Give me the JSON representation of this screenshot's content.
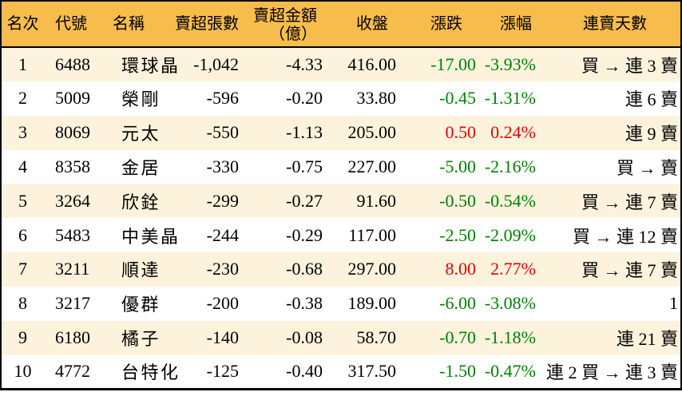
{
  "colors": {
    "header_bg": "#F7BD4C",
    "stripe_bg": "#FDF3DC",
    "negative": "#008000",
    "positive": "#E90000",
    "border": "#000000"
  },
  "columns": {
    "rank": "名次",
    "code": "代號",
    "name": "名稱",
    "sell_volume": "賣超張數",
    "sell_amount_line1": "賣超金額",
    "sell_amount_line2": "（億）",
    "close": "收盤",
    "change": "漲跌",
    "change_pct": "漲幅",
    "streak": "連賣天數"
  },
  "rows": [
    {
      "rank": "1",
      "code": "6488",
      "name": "環球晶",
      "sell_volume": "-1,042",
      "sell_amount": "-4.33",
      "close": "416.00",
      "change": "-17.00",
      "change_pct": "-3.93%",
      "streak": "買 → 連 3 賣"
    },
    {
      "rank": "2",
      "code": "5009",
      "name": "榮剛",
      "sell_volume": "-596",
      "sell_amount": "-0.20",
      "close": "33.80",
      "change": "-0.45",
      "change_pct": "-1.31%",
      "streak": "連 6 賣"
    },
    {
      "rank": "3",
      "code": "8069",
      "name": "元太",
      "sell_volume": "-550",
      "sell_amount": "-1.13",
      "close": "205.00",
      "change": "0.50",
      "change_pct": "0.24%",
      "streak": "連 9 賣"
    },
    {
      "rank": "4",
      "code": "8358",
      "name": "金居",
      "sell_volume": "-330",
      "sell_amount": "-0.75",
      "close": "227.00",
      "change": "-5.00",
      "change_pct": "-2.16%",
      "streak": "買 → 賣"
    },
    {
      "rank": "5",
      "code": "3264",
      "name": "欣銓",
      "sell_volume": "-299",
      "sell_amount": "-0.27",
      "close": "91.60",
      "change": "-0.50",
      "change_pct": "-0.54%",
      "streak": "買 → 連 7 賣"
    },
    {
      "rank": "6",
      "code": "5483",
      "name": "中美晶",
      "sell_volume": "-244",
      "sell_amount": "-0.29",
      "close": "117.00",
      "change": "-2.50",
      "change_pct": "-2.09%",
      "streak": "買 → 連 12 賣"
    },
    {
      "rank": "7",
      "code": "3211",
      "name": "順達",
      "sell_volume": "-230",
      "sell_amount": "-0.68",
      "close": "297.00",
      "change": "8.00",
      "change_pct": "2.77%",
      "streak": "買 → 連 7 賣"
    },
    {
      "rank": "8",
      "code": "3217",
      "name": "優群",
      "sell_volume": "-200",
      "sell_amount": "-0.38",
      "close": "189.00",
      "change": "-6.00",
      "change_pct": "-3.08%",
      "streak": "1"
    },
    {
      "rank": "9",
      "code": "6180",
      "name": "橘子",
      "sell_volume": "-140",
      "sell_amount": "-0.08",
      "close": "58.70",
      "change": "-0.70",
      "change_pct": "-1.18%",
      "streak": "連 21 賣"
    },
    {
      "rank": "10",
      "code": "4772",
      "name": "台特化",
      "sell_volume": "-125",
      "sell_amount": "-0.40",
      "close": "317.50",
      "change": "-1.50",
      "change_pct": "-0.47%",
      "streak": "連 2 買 → 連 3 賣"
    }
  ]
}
